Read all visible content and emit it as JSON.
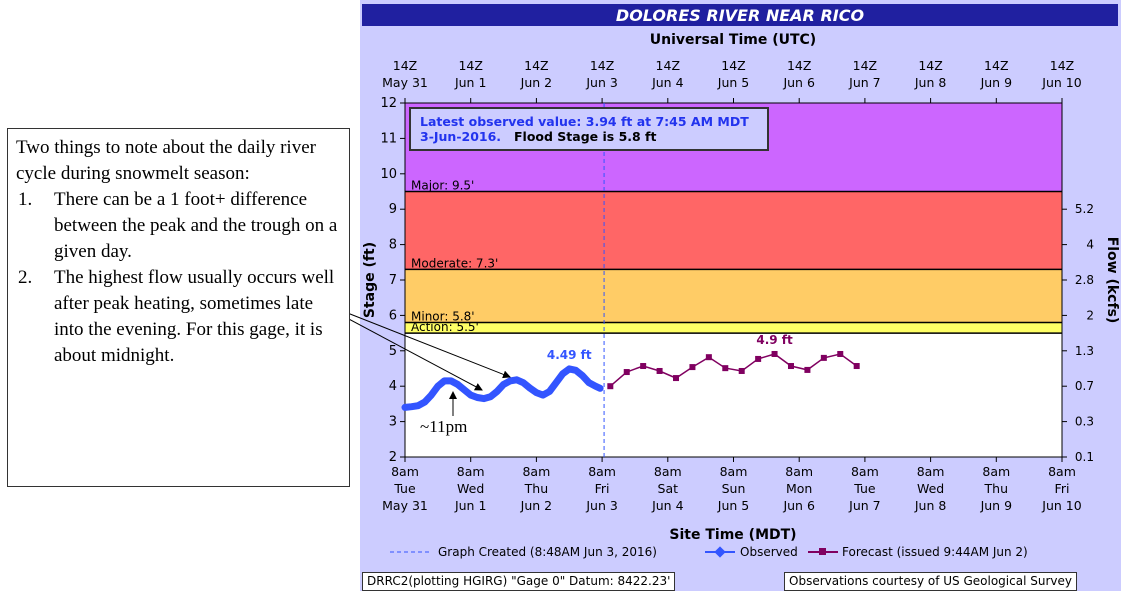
{
  "chart_data": {
    "type": "hydrograph",
    "title": "DOLORES RIVER NEAR RICO",
    "top_axis_title": "Universal Time (UTC)",
    "x_axis_title": "Site Time (MDT)",
    "y_axis_title": "Stage (ft)",
    "y2_axis_title": "Flow (kcfs)",
    "xlim": [
      0,
      10
    ],
    "ylim": [
      2,
      12
    ],
    "yticks": [
      2,
      3,
      4,
      5,
      6,
      7,
      8,
      9,
      10,
      11,
      12
    ],
    "xticks": [
      {
        "value": 0,
        "label": "8am\nTue\nMay 31"
      },
      {
        "value": 1,
        "label": "8am\nWed\nJun 1"
      },
      {
        "value": 2,
        "label": "8am\nThu\nJun 2"
      },
      {
        "value": 3,
        "label": "8am\nFri\nJun 3"
      },
      {
        "value": 4,
        "label": "8am\nSat\nJun 4"
      },
      {
        "value": 5,
        "label": "8am\nSun\nJun 5"
      },
      {
        "value": 6,
        "label": "8am\nMon\nJun 6"
      },
      {
        "value": 7,
        "label": "8am\nTue\nJun 7"
      },
      {
        "value": 8,
        "label": "8am\nWed\nJun 8"
      },
      {
        "value": 9,
        "label": "8am\nThu\nJun 9"
      },
      {
        "value": 10,
        "label": "8am\nFri\nJun 10"
      }
    ],
    "top_ticks": [
      {
        "value": 0,
        "label": "14Z\nMay 31"
      },
      {
        "value": 1,
        "label": "14Z\nJun 1"
      },
      {
        "value": 2,
        "label": "14Z\nJun 2"
      },
      {
        "value": 3,
        "label": "14Z\nJun 3"
      },
      {
        "value": 4,
        "label": "14Z\nJun 4"
      },
      {
        "value": 5,
        "label": "14Z\nJun 5"
      },
      {
        "value": 6,
        "label": "14Z\nJun 6"
      },
      {
        "value": 7,
        "label": "14Z\nJun 7"
      },
      {
        "value": 8,
        "label": "14Z\nJun 8"
      },
      {
        "value": 9,
        "label": "14Z\nJun 9"
      },
      {
        "value": 10,
        "label": "14Z\nJun 10"
      }
    ],
    "y2ticks": [
      0.1,
      0.3,
      0.7,
      1.3,
      2.0,
      2.8,
      4.0,
      5.2
    ],
    "y2tick_stages": [
      2,
      3,
      4,
      5,
      6,
      7,
      8,
      9
    ],
    "flood_stages": [
      {
        "label": "Action: 5.5'",
        "value": 5.5,
        "color": "#ffff66"
      },
      {
        "label": "Minor: 5.8'",
        "value": 5.8,
        "color": "#ffcc66"
      },
      {
        "label": "Moderate: 7.3'",
        "value": 7.3,
        "color": "#ff6666"
      },
      {
        "label": "Major: 9.5'",
        "value": 9.5,
        "color": "#cc66ff"
      }
    ],
    "graph_created_x": 3.03,
    "series": [
      {
        "name": "Observed",
        "color": "#3355ff",
        "x": [
          0,
          0.1,
          0.2,
          0.3,
          0.4,
          0.5,
          0.6,
          0.7,
          0.8,
          0.9,
          1.0,
          1.1,
          1.2,
          1.3,
          1.4,
          1.5,
          1.6,
          1.7,
          1.8,
          1.9,
          2.0,
          2.1,
          2.2,
          2.3,
          2.4,
          2.5,
          2.6,
          2.7,
          2.8,
          2.9,
          2.97
        ],
        "values": [
          3.4,
          3.42,
          3.45,
          3.55,
          3.75,
          4.0,
          4.15,
          4.15,
          4.05,
          3.9,
          3.75,
          3.68,
          3.65,
          3.7,
          3.85,
          4.05,
          4.15,
          4.18,
          4.1,
          3.95,
          3.82,
          3.75,
          3.85,
          4.1,
          4.35,
          4.49,
          4.45,
          4.3,
          4.1,
          4.0,
          3.94
        ]
      },
      {
        "name": "Forecast (issued 9:44AM Jun 2)",
        "color": "#800060",
        "x": [
          3.125,
          3.375,
          3.625,
          3.875,
          4.125,
          4.375,
          4.625,
          4.875,
          5.125,
          5.375,
          5.625,
          5.875,
          6.125,
          6.375,
          6.625,
          6.875
        ],
        "values": [
          4.0,
          4.4,
          4.57,
          4.43,
          4.23,
          4.54,
          4.82,
          4.51,
          4.43,
          4.77,
          4.91,
          4.57,
          4.46,
          4.8,
          4.91,
          4.57
        ]
      }
    ],
    "annotations": [
      {
        "text": "4.49 ft",
        "x": 2.5,
        "y": 4.49,
        "color": "#3355ff"
      },
      {
        "text": "4.9 ft",
        "x": 5.625,
        "y": 4.91,
        "color": "#800060"
      }
    ],
    "info_line1": "Latest observed value: 3.94 ft at 7:45 AM MDT",
    "info_date": "3-Jun-2016.",
    "info_flood": "Flood Stage is 5.8 ft",
    "legend_created": "Graph Created (8:48AM Jun 3, 2016)",
    "footer_left": "DRRC2(plotting HGIRG) \"Gage 0\" Datum: 8422.23'",
    "footer_right": "Observations courtesy of US Geological Survey"
  },
  "note": {
    "intro": "Two things to note about the daily river cycle during snowmelt season:",
    "items": [
      {
        "marker": "1.",
        "text": "There can be a 1 foot+ difference between the peak and the trough on a given day."
      },
      {
        "marker": "2.",
        "text": "The highest flow usually occurs well after peak heating, sometimes late into the evening. For this gage, it is about midnight."
      }
    ],
    "label_11pm": "~11pm"
  }
}
